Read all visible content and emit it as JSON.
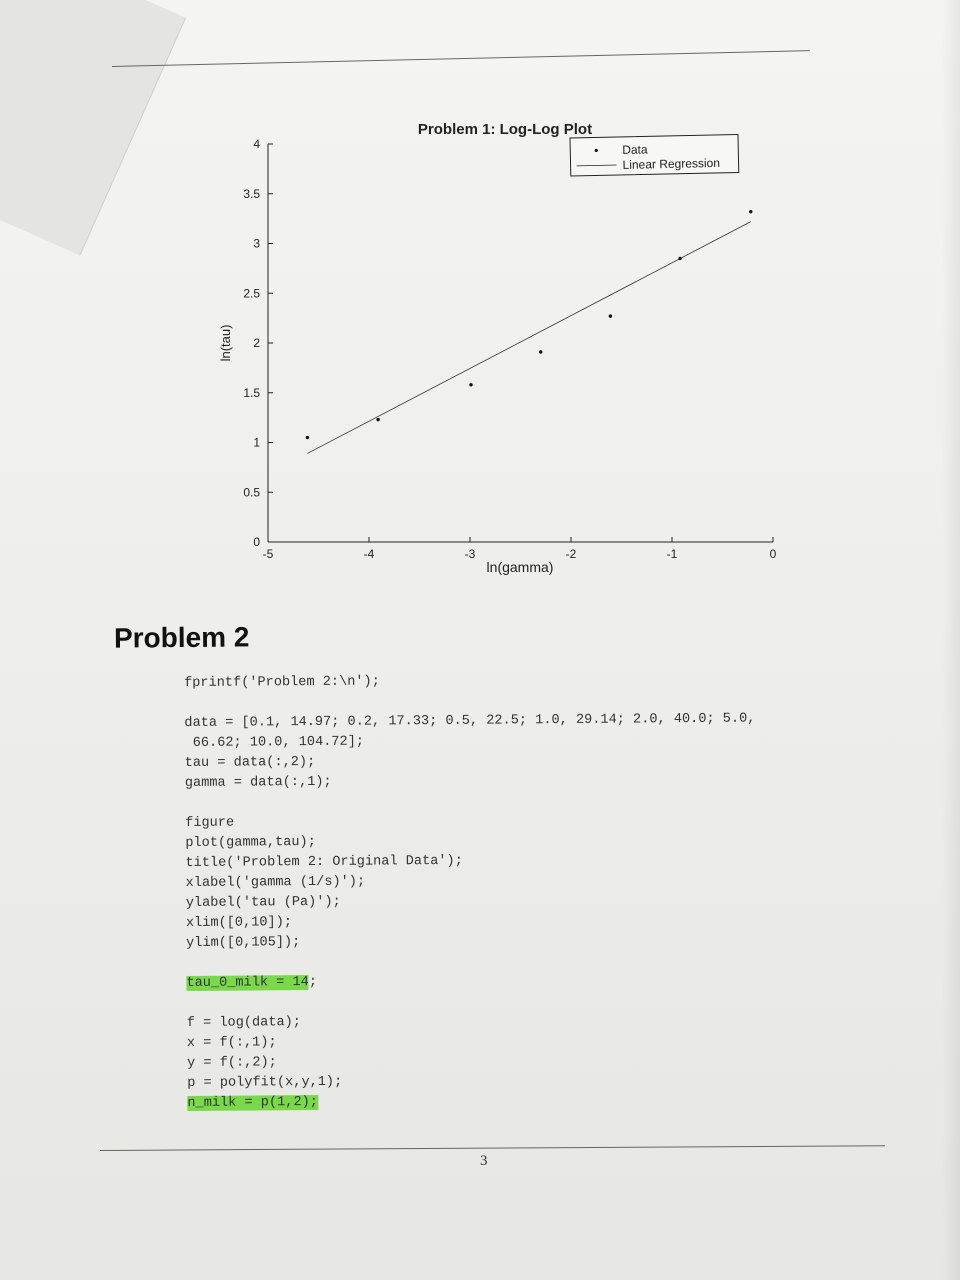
{
  "chart_data": {
    "type": "scatter",
    "title": "Problem 1: Log-Log Plot",
    "xlabel": "ln(gamma)",
    "ylabel": "ln(tau)",
    "xlim": [
      -5,
      0
    ],
    "ylim": [
      0,
      4
    ],
    "x_ticks": [
      -5,
      -4,
      -3,
      -2,
      -1,
      0
    ],
    "x_tick_labels": [
      "-5",
      "-4",
      "-3",
      "-2",
      "-1",
      "0"
    ],
    "y_ticks": [
      0,
      0.5,
      1,
      1.5,
      2,
      2.5,
      3,
      3.5,
      4
    ],
    "y_tick_labels": [
      "0",
      "0.5",
      "1",
      "1.5",
      "2",
      "2.5",
      "3",
      "3.5",
      "4"
    ],
    "legend_position": "top-right",
    "series": [
      {
        "name": "Data",
        "style": "dots",
        "x": [
          -4.61,
          -3.91,
          -2.99,
          -2.3,
          -1.61,
          -0.92,
          -0.22
        ],
        "y": [
          1.05,
          1.23,
          1.58,
          1.91,
          2.27,
          2.85,
          3.32
        ]
      },
      {
        "name": "Linear Regression",
        "style": "line",
        "x": [
          -4.61,
          -0.22
        ],
        "y": [
          0.89,
          3.22
        ]
      }
    ]
  },
  "problem2": {
    "heading": "Problem 2",
    "code_lines": [
      {
        "text": "fprintf('Problem 2:\\n');"
      },
      {
        "text": ""
      },
      {
        "text": "data = [0.1, 14.97; 0.2, 17.33; 0.5, 22.5; 1.0, 29.14; 2.0, 40.0; 5.0,"
      },
      {
        "text": " 66.62; 10.0, 104.72];"
      },
      {
        "text": "tau = data(:,2);"
      },
      {
        "text": "gamma = data(:,1);"
      },
      {
        "text": ""
      },
      {
        "text": "figure"
      },
      {
        "text": "plot(gamma,tau);"
      },
      {
        "text": "title('Problem 2: Original Data');"
      },
      {
        "text": "xlabel('gamma (1/s)');"
      },
      {
        "text": "ylabel('tau (Pa)');"
      },
      {
        "text": "xlim([0,10]);"
      },
      {
        "text": "ylim([0,105]);"
      },
      {
        "text": ""
      },
      {
        "highlight": "tau_0_milk = 14",
        "text": ";"
      },
      {
        "text": ""
      },
      {
        "text": "f = log(data);"
      },
      {
        "text": "x = f(:,1);"
      },
      {
        "text": "y = f(:,2);"
      },
      {
        "text": "p = polyfit(x,y,1);"
      },
      {
        "highlight": "n_milk = p(1,2);",
        "text": ""
      }
    ]
  },
  "page_number": "3",
  "colors": {
    "paper": "#f2f2f0",
    "ink": "#222222",
    "highlighter": "#79d94a"
  }
}
